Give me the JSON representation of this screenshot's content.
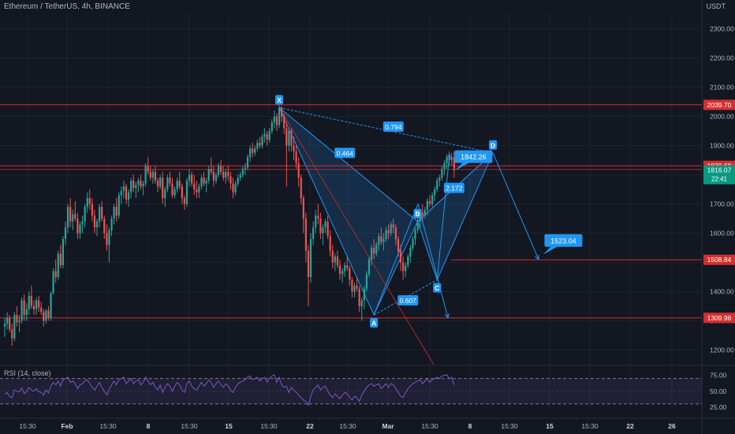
{
  "header": {
    "title": "Ethereum / TetherUS, 4h, BINANCE",
    "currency": "USDT"
  },
  "rsi_label": "RSI (14, close)",
  "colors": {
    "bg": "#131722",
    "grid": "#1e222d",
    "up": "#26a69a",
    "down": "#ef5350",
    "pattern": "#2196f3",
    "level": "#d32f2f",
    "rsi": "#7e57c2",
    "text": "#b2b5be"
  },
  "chart_data": {
    "type": "candlestick",
    "ylim": [
      1150,
      2350
    ],
    "yticks": [
      1200,
      1300,
      1400,
      1500,
      1600,
      1700,
      1800,
      1900,
      2000,
      2100,
      2200,
      2300
    ],
    "ytick_labels": [
      "1200.00",
      "1300.00",
      "1400.00",
      "1500.00",
      "1600.00",
      "1700.00",
      "1800.00",
      "1900.00",
      "2000.00",
      "2100.00",
      "2200.00",
      "2300.00"
    ],
    "xticks": [
      "15:30",
      "Feb",
      "15:30",
      "8",
      "15:30",
      "15",
      "15:30",
      "22",
      "15:30",
      "Mar",
      "15:30",
      "8",
      "15:30",
      "15",
      "15:30",
      "22",
      "26"
    ],
    "xtick_bold": [
      false,
      true,
      false,
      true,
      false,
      true,
      false,
      true,
      false,
      true,
      false,
      true,
      false,
      true,
      false,
      true,
      true
    ],
    "price_levels": [
      {
        "value": 2039.7,
        "label": "2039.70"
      },
      {
        "value": 1830.69,
        "label": "1830.69"
      },
      {
        "value": 1508.84,
        "label": "1508.84"
      },
      {
        "value": 1309.96,
        "label": "1309.96"
      }
    ],
    "current_price": {
      "value": 1816.07,
      "label": "1816.07",
      "countdown": "22:41"
    },
    "harmonic": {
      "points": [
        {
          "name": "X",
          "bar": 113,
          "price": 2030
        },
        {
          "name": "A",
          "bar": 152,
          "price": 1320
        },
        {
          "name": "B",
          "bar": 170,
          "price": 1640
        },
        {
          "name": "C",
          "bar": 178,
          "price": 1440
        },
        {
          "name": "D",
          "bar": 201,
          "price": 1875
        }
      ],
      "ratios": [
        {
          "label": "0.464",
          "bar": 140,
          "price": 1875
        },
        {
          "label": "0.794",
          "bar": 160,
          "price": 1965
        },
        {
          "label": "0.607",
          "bar": 166,
          "price": 1370
        },
        {
          "label": "2.172",
          "bar": 185,
          "price": 1755
        }
      ]
    },
    "targets": [
      {
        "label": "1842.26",
        "bar": 193,
        "price": 1862
      },
      {
        "label": "1523.04",
        "bar": 230,
        "price": 1575
      }
    ],
    "rsi": {
      "ylim": [
        20,
        82
      ],
      "ticks": [
        25,
        50,
        75
      ],
      "tick_labels": [
        "25.00",
        "50.00",
        "75.00"
      ],
      "band": [
        30,
        70
      ]
    },
    "candles": [
      [
        1280,
        1310,
        1245,
        1290
      ],
      [
        1290,
        1330,
        1270,
        1310
      ],
      [
        1310,
        1320,
        1260,
        1270
      ],
      [
        1270,
        1290,
        1215,
        1240
      ],
      [
        1240,
        1330,
        1230,
        1320
      ],
      [
        1320,
        1350,
        1280,
        1295
      ],
      [
        1295,
        1320,
        1260,
        1300
      ],
      [
        1300,
        1380,
        1290,
        1370
      ],
      [
        1370,
        1390,
        1300,
        1320
      ],
      [
        1320,
        1360,
        1300,
        1340
      ],
      [
        1340,
        1400,
        1320,
        1385
      ],
      [
        1385,
        1420,
        1340,
        1350
      ],
      [
        1350,
        1370,
        1320,
        1340
      ],
      [
        1340,
        1380,
        1320,
        1370
      ],
      [
        1370,
        1385,
        1330,
        1345
      ],
      [
        1345,
        1365,
        1320,
        1330
      ],
      [
        1330,
        1340,
        1280,
        1300
      ],
      [
        1300,
        1340,
        1290,
        1335
      ],
      [
        1335,
        1350,
        1300,
        1310
      ],
      [
        1310,
        1400,
        1300,
        1395
      ],
      [
        1395,
        1480,
        1390,
        1470
      ],
      [
        1470,
        1510,
        1430,
        1450
      ],
      [
        1450,
        1540,
        1440,
        1530
      ],
      [
        1530,
        1560,
        1480,
        1490
      ],
      [
        1490,
        1590,
        1480,
        1580
      ],
      [
        1580,
        1640,
        1560,
        1620
      ],
      [
        1620,
        1700,
        1600,
        1690
      ],
      [
        1690,
        1720,
        1620,
        1640
      ],
      [
        1640,
        1680,
        1610,
        1665
      ],
      [
        1665,
        1710,
        1640,
        1650
      ],
      [
        1650,
        1670,
        1580,
        1600
      ],
      [
        1600,
        1640,
        1580,
        1630
      ],
      [
        1630,
        1660,
        1600,
        1640
      ],
      [
        1640,
        1700,
        1620,
        1690
      ],
      [
        1690,
        1740,
        1670,
        1720
      ],
      [
        1720,
        1750,
        1680,
        1700
      ],
      [
        1700,
        1720,
        1640,
        1660
      ],
      [
        1660,
        1680,
        1600,
        1620
      ],
      [
        1620,
        1650,
        1590,
        1640
      ],
      [
        1640,
        1700,
        1620,
        1690
      ],
      [
        1690,
        1710,
        1640,
        1650
      ],
      [
        1650,
        1660,
        1580,
        1600
      ],
      [
        1600,
        1630,
        1540,
        1560
      ],
      [
        1560,
        1620,
        1500,
        1610
      ],
      [
        1610,
        1660,
        1590,
        1650
      ],
      [
        1650,
        1700,
        1630,
        1690
      ],
      [
        1690,
        1720,
        1640,
        1660
      ],
      [
        1660,
        1740,
        1650,
        1730
      ],
      [
        1730,
        1760,
        1700,
        1745
      ],
      [
        1745,
        1780,
        1720,
        1760
      ],
      [
        1760,
        1770,
        1700,
        1715
      ],
      [
        1715,
        1750,
        1690,
        1740
      ],
      [
        1740,
        1790,
        1720,
        1780
      ],
      [
        1780,
        1800,
        1740,
        1755
      ],
      [
        1755,
        1775,
        1720,
        1765
      ],
      [
        1765,
        1790,
        1740,
        1780
      ],
      [
        1780,
        1800,
        1750,
        1760
      ],
      [
        1760,
        1780,
        1730,
        1770
      ],
      [
        1770,
        1840,
        1760,
        1830
      ],
      [
        1830,
        1860,
        1800,
        1810
      ],
      [
        1810,
        1830,
        1780,
        1790
      ],
      [
        1790,
        1820,
        1770,
        1810
      ],
      [
        1810,
        1830,
        1770,
        1780
      ],
      [
        1780,
        1790,
        1740,
        1760
      ],
      [
        1760,
        1800,
        1750,
        1790
      ],
      [
        1790,
        1810,
        1700,
        1720
      ],
      [
        1720,
        1760,
        1690,
        1750
      ],
      [
        1750,
        1800,
        1740,
        1790
      ],
      [
        1790,
        1810,
        1760,
        1770
      ],
      [
        1770,
        1790,
        1720,
        1730
      ],
      [
        1730,
        1760,
        1720,
        1750
      ],
      [
        1750,
        1790,
        1740,
        1780
      ],
      [
        1780,
        1810,
        1750,
        1760
      ],
      [
        1760,
        1770,
        1700,
        1720
      ],
      [
        1720,
        1730,
        1680,
        1700
      ],
      [
        1700,
        1790,
        1690,
        1780
      ],
      [
        1780,
        1820,
        1760,
        1800
      ],
      [
        1800,
        1810,
        1760,
        1770
      ],
      [
        1770,
        1800,
        1730,
        1750
      ],
      [
        1750,
        1780,
        1720,
        1740
      ],
      [
        1740,
        1770,
        1720,
        1760
      ],
      [
        1760,
        1800,
        1750,
        1790
      ],
      [
        1790,
        1810,
        1760,
        1770
      ],
      [
        1770,
        1790,
        1740,
        1780
      ],
      [
        1780,
        1830,
        1770,
        1820
      ],
      [
        1820,
        1860,
        1800,
        1810
      ],
      [
        1810,
        1830,
        1760,
        1780
      ],
      [
        1780,
        1810,
        1770,
        1800
      ],
      [
        1800,
        1840,
        1790,
        1830
      ],
      [
        1830,
        1850,
        1800,
        1810
      ],
      [
        1810,
        1830,
        1780,
        1790
      ],
      [
        1790,
        1820,
        1770,
        1810
      ],
      [
        1810,
        1830,
        1780,
        1795
      ],
      [
        1795,
        1810,
        1750,
        1770
      ],
      [
        1770,
        1790,
        1720,
        1740
      ],
      [
        1740,
        1780,
        1730,
        1770
      ],
      [
        1770,
        1800,
        1760,
        1790
      ],
      [
        1790,
        1810,
        1780,
        1800
      ],
      [
        1800,
        1830,
        1790,
        1820
      ],
      [
        1820,
        1840,
        1800,
        1825
      ],
      [
        1825,
        1870,
        1815,
        1860
      ],
      [
        1860,
        1900,
        1845,
        1890
      ],
      [
        1890,
        1910,
        1860,
        1875
      ],
      [
        1875,
        1900,
        1865,
        1890
      ],
      [
        1890,
        1920,
        1880,
        1910
      ],
      [
        1910,
        1930,
        1890,
        1900
      ],
      [
        1900,
        1940,
        1890,
        1930
      ],
      [
        1930,
        1960,
        1910,
        1940
      ],
      [
        1940,
        1950,
        1900,
        1920
      ],
      [
        1920,
        1960,
        1910,
        1950
      ],
      [
        1950,
        1990,
        1940,
        1980
      ],
      [
        1980,
        2020,
        1960,
        2000
      ],
      [
        2000,
        2010,
        1950,
        1970
      ],
      [
        1970,
        2040,
        1960,
        2030
      ],
      [
        2030,
        2035,
        1980,
        2000
      ],
      [
        2000,
        2010,
        1940,
        1960
      ],
      [
        1960,
        1980,
        1760,
        1900
      ],
      [
        1900,
        1960,
        1880,
        1950
      ],
      [
        1950,
        1960,
        1880,
        1900
      ],
      [
        1900,
        1930,
        1850,
        1880
      ],
      [
        1880,
        1900,
        1820,
        1840
      ],
      [
        1840,
        1860,
        1760,
        1790
      ],
      [
        1790,
        1800,
        1700,
        1720
      ],
      [
        1720,
        1730,
        1600,
        1650
      ],
      [
        1650,
        1670,
        1500,
        1540
      ],
      [
        1540,
        1560,
        1350,
        1450
      ],
      [
        1450,
        1600,
        1430,
        1580
      ],
      [
        1580,
        1640,
        1560,
        1620
      ],
      [
        1620,
        1680,
        1600,
        1660
      ],
      [
        1660,
        1700,
        1630,
        1650
      ],
      [
        1650,
        1670,
        1580,
        1600
      ],
      [
        1600,
        1630,
        1560,
        1620
      ],
      [
        1620,
        1650,
        1600,
        1640
      ],
      [
        1640,
        1660,
        1580,
        1590
      ],
      [
        1590,
        1610,
        1520,
        1540
      ],
      [
        1540,
        1560,
        1480,
        1500
      ],
      [
        1500,
        1530,
        1470,
        1520
      ],
      [
        1520,
        1540,
        1480,
        1490
      ],
      [
        1490,
        1510,
        1440,
        1460
      ],
      [
        1460,
        1480,
        1430,
        1470
      ],
      [
        1470,
        1500,
        1450,
        1490
      ],
      [
        1490,
        1520,
        1470,
        1480
      ],
      [
        1480,
        1490,
        1420,
        1440
      ],
      [
        1440,
        1450,
        1380,
        1400
      ],
      [
        1400,
        1430,
        1380,
        1420
      ],
      [
        1420,
        1450,
        1400,
        1410
      ],
      [
        1410,
        1420,
        1330,
        1350
      ],
      [
        1350,
        1380,
        1300,
        1370
      ],
      [
        1370,
        1420,
        1340,
        1410
      ],
      [
        1410,
        1470,
        1400,
        1460
      ],
      [
        1460,
        1520,
        1450,
        1510
      ],
      [
        1510,
        1560,
        1490,
        1550
      ],
      [
        1550,
        1580,
        1510,
        1530
      ],
      [
        1530,
        1570,
        1520,
        1560
      ],
      [
        1560,
        1600,
        1540,
        1590
      ],
      [
        1590,
        1620,
        1560,
        1570
      ],
      [
        1570,
        1600,
        1540,
        1580
      ],
      [
        1580,
        1620,
        1570,
        1610
      ],
      [
        1610,
        1630,
        1580,
        1600
      ],
      [
        1600,
        1640,
        1590,
        1630
      ],
      [
        1630,
        1650,
        1600,
        1620
      ],
      [
        1620,
        1630,
        1560,
        1580
      ],
      [
        1580,
        1590,
        1520,
        1540
      ],
      [
        1540,
        1560,
        1470,
        1500
      ],
      [
        1500,
        1520,
        1440,
        1470
      ],
      [
        1470,
        1500,
        1450,
        1490
      ],
      [
        1490,
        1530,
        1480,
        1520
      ],
      [
        1520,
        1560,
        1500,
        1550
      ],
      [
        1550,
        1590,
        1540,
        1580
      ],
      [
        1580,
        1620,
        1560,
        1610
      ],
      [
        1610,
        1650,
        1600,
        1640
      ],
      [
        1640,
        1680,
        1620,
        1670
      ],
      [
        1670,
        1700,
        1640,
        1660
      ],
      [
        1660,
        1690,
        1650,
        1680
      ],
      [
        1680,
        1720,
        1660,
        1710
      ],
      [
        1710,
        1730,
        1690,
        1700
      ],
      [
        1700,
        1740,
        1690,
        1730
      ],
      [
        1730,
        1760,
        1710,
        1750
      ],
      [
        1750,
        1790,
        1740,
        1780
      ],
      [
        1780,
        1800,
        1760,
        1790
      ],
      [
        1790,
        1830,
        1780,
        1820
      ],
      [
        1820,
        1850,
        1800,
        1840
      ],
      [
        1840,
        1870,
        1820,
        1860
      ],
      [
        1860,
        1880,
        1830,
        1850
      ],
      [
        1850,
        1875,
        1830,
        1860
      ],
      [
        1860,
        1880,
        1790,
        1816
      ]
    ],
    "rsi_values": [
      45,
      48,
      42,
      40,
      52,
      50,
      49,
      55,
      46,
      50,
      56,
      52,
      50,
      54,
      49,
      48,
      44,
      52,
      47,
      58,
      64,
      60,
      66,
      58,
      68,
      70,
      72,
      64,
      66,
      62,
      54,
      60,
      62,
      66,
      68,
      62,
      56,
      52,
      58,
      64,
      56,
      50,
      44,
      52,
      60,
      66,
      60,
      68,
      70,
      72,
      62,
      66,
      70,
      62,
      66,
      68,
      60,
      64,
      72,
      66,
      60,
      64,
      56,
      52,
      60,
      48,
      56,
      62,
      58,
      50,
      58,
      64,
      60,
      52,
      48,
      62,
      66,
      58,
      54,
      52,
      58,
      64,
      58,
      62,
      68,
      64,
      56,
      62,
      66,
      60,
      56,
      62,
      58,
      52,
      48,
      56,
      62,
      64,
      66,
      68,
      72,
      74,
      68,
      70,
      72,
      66,
      70,
      72,
      64,
      70,
      74,
      76,
      64,
      72,
      60,
      56,
      58,
      48,
      56,
      52,
      48,
      44,
      40,
      36,
      34,
      28,
      42,
      52,
      56,
      60,
      52,
      56,
      58,
      50,
      44,
      40,
      46,
      42,
      38,
      44,
      48,
      46,
      40,
      36,
      42,
      40,
      34,
      44,
      50,
      56,
      60,
      62,
      58,
      60,
      62,
      54,
      58,
      62,
      56,
      62,
      60,
      54,
      48,
      42,
      40,
      48,
      54,
      58,
      62,
      64,
      66,
      68,
      62,
      66,
      70,
      64,
      68,
      70,
      72,
      70,
      74,
      75,
      76,
      70,
      72,
      60
    ]
  }
}
